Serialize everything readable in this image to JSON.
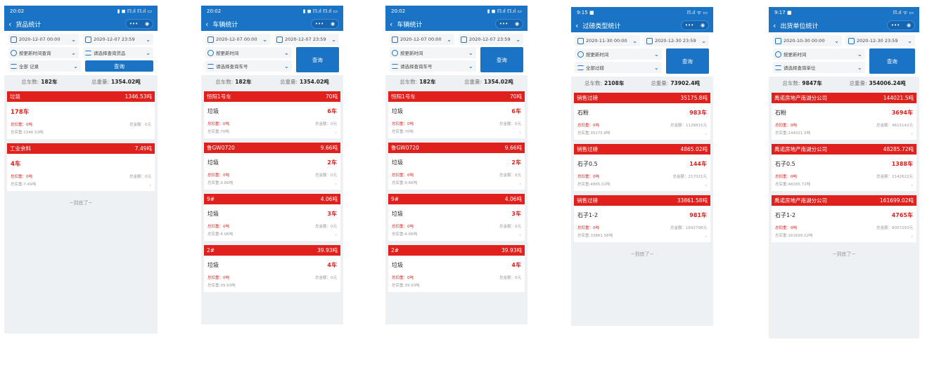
{
  "phones": [
    {
      "status_time": "20:02",
      "status_right": "▮ ◼ ℿ.ıl ℿ.ıl ▭",
      "title": "货品统计",
      "date_start": "2020-12-07 00:00",
      "date_end": "2020-12-07 23:59",
      "sel1": "按更新时间查询",
      "sel2": "请选择查询货品",
      "sel3": "全部 记录",
      "query": "查询",
      "total_count_label": "总车数:",
      "total_count": "182车",
      "total_weight_label": "总重量:",
      "total_weight": "1354.02吨",
      "cards": [
        {
          "head": "垃圾",
          "head_val": "1346.53吨",
          "name": "",
          "count": "178车",
          "deduct_label": "总扣重：0吨",
          "amount_label": "总金额：0元",
          "real_label": "总实重:1346.53吨"
        },
        {
          "head": "工业余料",
          "head_val": "7.49吨",
          "name": "",
          "count": "4车",
          "deduct_label": "总扣重：0吨",
          "amount_label": "总金额：0元",
          "real_label": "总实重:7.49吨"
        }
      ],
      "end_text": "~到底了~"
    },
    {
      "status_time": "20:02",
      "status_right": "▮ ◼ ℿ.ıl ℿ.ıl ▭",
      "title": "车辆统计",
      "date_start": "2020-12-07 00:00",
      "date_end": "2020-12-07 23:59",
      "sel1": "按更新时间",
      "sel2": "请选择查询车号",
      "sel3": "",
      "query": "查询",
      "total_count_label": "总车数:",
      "total_count": "182车",
      "total_weight_label": "总重量:",
      "total_weight": "1354.02吨",
      "cards": [
        {
          "head": "恒阳1号车",
          "head_val": "70吨",
          "name": "垃圾",
          "count": "6车",
          "deduct_label": "总扣重：0吨",
          "amount_label": "总金额：0元",
          "real_label": "总实重:70吨"
        },
        {
          "head": "鲁GW0720",
          "head_val": "9.66吨",
          "name": "垃圾",
          "count": "2车",
          "deduct_label": "总扣重：0吨",
          "amount_label": "总金额：0元",
          "real_label": "总实重:9.66吨"
        },
        {
          "head": "9#",
          "head_val": "4.06吨",
          "name": "垃圾",
          "count": "3车",
          "deduct_label": "总扣重：0吨",
          "amount_label": "总金额：0元",
          "real_label": "总实重:4.06吨"
        },
        {
          "head": "2#",
          "head_val": "39.93吨",
          "name": "垃圾",
          "count": "4车",
          "deduct_label": "总扣重：0吨",
          "amount_label": "总金额：0元",
          "real_label": "总实重:39.93吨"
        }
      ],
      "end_text": ""
    },
    {
      "status_time": "20:02",
      "status_right": "▮ ◼ ℿ.ıl ℿ.ıl ▭",
      "title": "车辆统计",
      "date_start": "2020-12-07 00:00",
      "date_end": "2020-12-07 23:59",
      "sel1": "按更新时间",
      "sel2": "请选择查询车号",
      "sel3": "",
      "query": "查询",
      "total_count_label": "总车数:",
      "total_count": "182车",
      "total_weight_label": "总重量:",
      "total_weight": "1354.02吨",
      "cards": [
        {
          "head": "恒阳1号车",
          "head_val": "70吨",
          "name": "垃圾",
          "count": "6车",
          "deduct_label": "总扣重：0吨",
          "amount_label": "总金额：0元",
          "real_label": "总实重:70吨"
        },
        {
          "head": "鲁GW0720",
          "head_val": "9.66吨",
          "name": "垃圾",
          "count": "2车",
          "deduct_label": "总扣重：0吨",
          "amount_label": "总金额：0元",
          "real_label": "总实重:9.66吨"
        },
        {
          "head": "9#",
          "head_val": "4.06吨",
          "name": "垃圾",
          "count": "3车",
          "deduct_label": "总扣重：0吨",
          "amount_label": "总金额：0元",
          "real_label": "总实重:4.06吨"
        },
        {
          "head": "2#",
          "head_val": "39.93吨",
          "name": "垃圾",
          "count": "4车",
          "deduct_label": "总扣重：0吨",
          "amount_label": "总金额：0元",
          "real_label": "总实重:39.93吨"
        }
      ],
      "end_text": ""
    },
    {
      "status_time": "9:15 ■",
      "status_right": "ℿ.ıl ᯤ ▭",
      "title": "过磅类型统计",
      "date_start": "2020-11-30 00:00",
      "date_end": "2020-12-30 23:59",
      "sel1": "按更新时间",
      "sel2": "全部过磅",
      "sel3": "",
      "query": "查询",
      "total_count_label": "总车数:",
      "total_count": "2108车",
      "total_weight_label": "总重量:",
      "total_weight": "73902.4吨",
      "cards": [
        {
          "head": "销售过磅",
          "head_val": "35175.8吨",
          "name": "石粉",
          "count": "983车",
          "deduct_label": "总扣重：0吨",
          "amount_label": "总金额：1128815元",
          "real_label": "总实重:35175.8吨"
        },
        {
          "head": "销售过磅",
          "head_val": "4865.02吨",
          "name": "石子0.5",
          "count": "144车",
          "deduct_label": "总扣重：0吨",
          "amount_label": "总金额：217021元",
          "real_label": "总实重:4865.02吨"
        },
        {
          "head": "销售过磅",
          "head_val": "33861.58吨",
          "name": "石子1-2",
          "count": "981车",
          "deduct_label": "总扣重：0吨",
          "amount_label": "总金额：1692798元",
          "real_label": "总实重:33861.58吨"
        }
      ],
      "end_text": "~到底了~"
    },
    {
      "status_time": "9:17 ■",
      "status_right": "ℿ.ıl ᯤ ▭",
      "title": "出货单位统计",
      "date_start": "2020-10-30 00:00",
      "date_end": "2020-12-30 23:59",
      "sel1": "按更新时间",
      "sel2": "请选择查询单位",
      "sel3": "",
      "query": "查询",
      "total_count_label": "总车数:",
      "total_count": "9847车",
      "total_weight_label": "总重量:",
      "total_weight": "354006.24吨",
      "cards": [
        {
          "head": "禹诺房地产南湖分公司",
          "head_val": "144021.5吨",
          "name": "石粉",
          "count": "3694车",
          "deduct_label": "总扣重：0吨",
          "amount_label": "总金额：4615142元",
          "real_label": "总实重:144021.5吨"
        },
        {
          "head": "禹诺房地产南湖分公司",
          "head_val": "48285.72吨",
          "name": "石子0.5",
          "count": "1388车",
          "deduct_label": "总扣重：0吨",
          "amount_label": "总金额：2142622元",
          "real_label": "总实重:48285.72吨"
        },
        {
          "head": "禹诺房地产南湖分公司",
          "head_val": "161699.02吨",
          "name": "石子1-2",
          "count": "4765车",
          "deduct_label": "总扣重：0吨",
          "amount_label": "总金额：8007293元",
          "real_label": "总实重:161699.02吨"
        }
      ],
      "end_text": "~到底了~"
    }
  ]
}
